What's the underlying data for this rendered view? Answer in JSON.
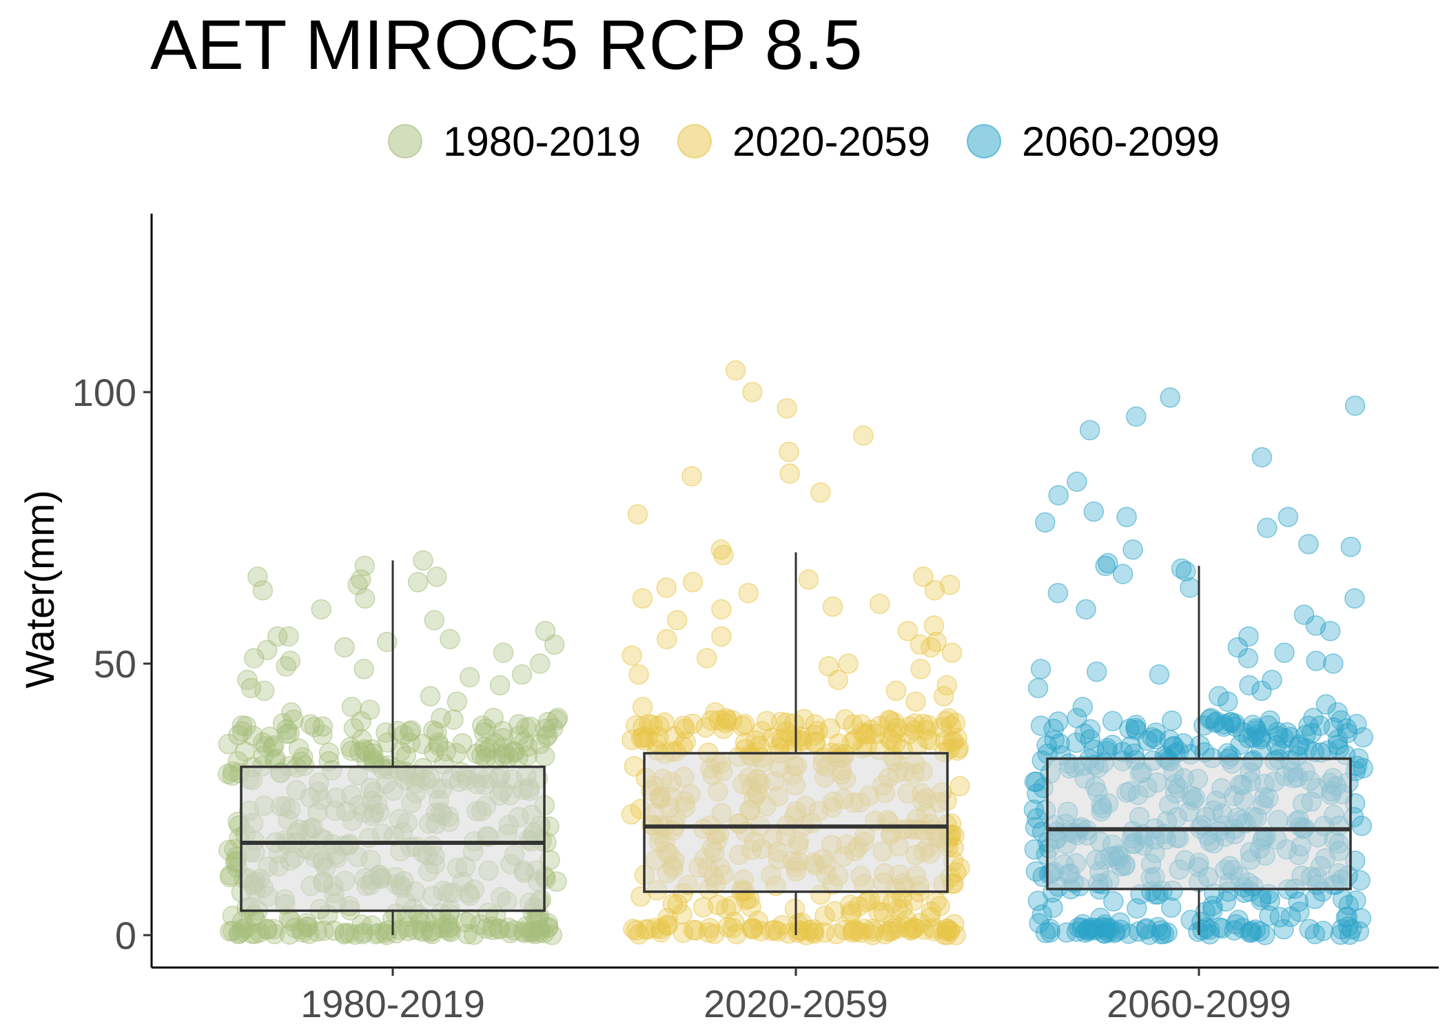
{
  "chart_data": {
    "type": "boxplot",
    "title": "AET MIROC5 RCP 8.5",
    "xlabel": "",
    "ylabel": "Water(mm)",
    "ylim": [
      -6,
      133
    ],
    "yticks": [
      0,
      50,
      100
    ],
    "grid": false,
    "legend_position": "top",
    "categories": [
      "1980-2019",
      "2020-2059",
      "2060-2099"
    ],
    "colors": [
      "#a6bd7b",
      "#e8c547",
      "#2aa3c8"
    ],
    "legend": [
      {
        "label": "1980-2019",
        "color": "#a6bd7b"
      },
      {
        "label": "2020-2059",
        "color": "#e8c547"
      },
      {
        "label": "2060-2099",
        "color": "#2aa3c8"
      }
    ],
    "boxes": [
      {
        "category": "1980-2019",
        "min": 0,
        "q1": 4.5,
        "median": 17,
        "q3": 31,
        "max": 69
      },
      {
        "category": "2020-2059",
        "min": 0,
        "q1": 8,
        "median": 20,
        "q3": 33.5,
        "max": 70.5
      },
      {
        "category": "2060-2099",
        "min": 0,
        "q1": 8.5,
        "median": 19.5,
        "q3": 32.5,
        "max": 68
      }
    ],
    "points": [
      {
        "category": "1980-2019",
        "n": 480,
        "high_values": [
          69,
          68,
          66,
          66,
          65.5,
          65,
          64.5,
          63.5,
          62,
          60,
          58,
          56,
          55,
          55,
          54.5,
          54,
          53.5,
          53,
          52.5,
          52,
          51,
          50.5,
          50,
          49.5,
          49,
          48,
          47.5,
          47,
          46,
          45.5,
          45,
          44,
          43,
          42,
          41.5,
          41,
          40,
          39
        ]
      },
      {
        "category": "2020-2059",
        "n": 480,
        "high_values": [
          104,
          100,
          97,
          92,
          89,
          85,
          84.5,
          81.5,
          77.5,
          71,
          70,
          66,
          65.5,
          65,
          64.5,
          64,
          63.5,
          63,
          62,
          61,
          60.5,
          60,
          58,
          57,
          56,
          55,
          54.5,
          54,
          53.5,
          53,
          52,
          51.5,
          51,
          50,
          49.5,
          49,
          48,
          47,
          46,
          45,
          44,
          43,
          42,
          41
        ]
      },
      {
        "category": "2060-2099",
        "n": 480,
        "high_values": [
          99,
          97.5,
          95.5,
          93,
          88,
          83.5,
          81,
          78,
          77,
          77,
          76,
          75,
          72,
          71.5,
          71,
          68.5,
          68,
          67.5,
          67,
          66.5,
          64,
          63,
          62,
          60,
          59,
          57,
          56,
          55,
          53,
          52,
          51,
          50.5,
          50,
          49,
          48.5,
          48,
          47,
          46,
          45.5,
          45,
          44,
          43,
          42.5,
          42,
          41
        ]
      }
    ]
  }
}
